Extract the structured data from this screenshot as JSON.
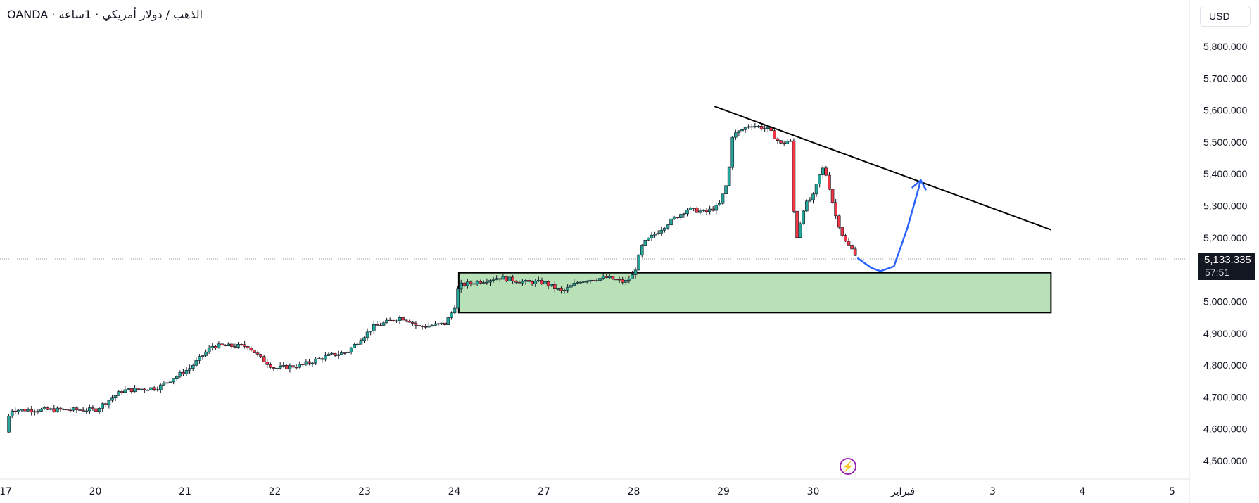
{
  "header": {
    "title": "OANDA · الذهب / دولار أمريكي · 1ساعة"
  },
  "currency_button": "USD",
  "last_price": {
    "price": "5,133.335",
    "countdown": "57:51"
  },
  "colors": {
    "up": "#089981",
    "up_fill": "#26a69a",
    "down": "#f23645",
    "zone_fill": "#b9e1b7",
    "zone_border": "#000000",
    "trendline": "#000000",
    "projection": "#2962ff",
    "grid_text": "#131722",
    "price_line": "#9598a1"
  },
  "icons": {
    "flash": "lightning-icon"
  },
  "chart_data": {
    "type": "candlestick",
    "interval": "1 hour",
    "y_axis": {
      "range": [
        4450,
        5920
      ],
      "ticks": [
        4500,
        4600,
        4700,
        4800,
        4900,
        5000,
        5100,
        5200,
        5300,
        5400,
        5500,
        5600,
        5700,
        5800
      ],
      "tick_labels": [
        "4,500.000",
        "4,600.000",
        "4,700.000",
        "4,800.000",
        "4,900.000",
        "5,000.000",
        "5,100.000",
        "5,200.000",
        "5,300.000",
        "5,400.000",
        "5,500.000",
        "5,600.000",
        "5,700.000",
        "5,800.000"
      ]
    },
    "x_axis": {
      "range": [
        0,
        13.2
      ],
      "ticks": [
        {
          "pos": 0,
          "label": "17"
        },
        {
          "pos": 1,
          "label": "20"
        },
        {
          "pos": 2,
          "label": "21"
        },
        {
          "pos": 3,
          "label": "22"
        },
        {
          "pos": 4,
          "label": "23"
        },
        {
          "pos": 5,
          "label": "24"
        },
        {
          "pos": 6,
          "label": "27"
        },
        {
          "pos": 7,
          "label": "28"
        },
        {
          "pos": 8,
          "label": "29"
        },
        {
          "pos": 9,
          "label": "30"
        },
        {
          "pos": 10,
          "label": "فبراير"
        },
        {
          "pos": 11,
          "label": "3"
        },
        {
          "pos": 12,
          "label": "4"
        },
        {
          "pos": 13,
          "label": "5"
        }
      ]
    },
    "price_path": [
      [
        0,
        4590
      ],
      [
        0.05,
        4660
      ],
      [
        0.4,
        4660
      ],
      [
        1.0,
        4660
      ],
      [
        1.3,
        4720
      ],
      [
        1.7,
        4730
      ],
      [
        2.05,
        4790
      ],
      [
        2.3,
        4860
      ],
      [
        2.7,
        4860
      ],
      [
        2.85,
        4820
      ],
      [
        3.0,
        4790
      ],
      [
        3.3,
        4800
      ],
      [
        3.6,
        4830
      ],
      [
        3.8,
        4840
      ],
      [
        4.1,
        4920
      ],
      [
        4.4,
        4950
      ],
      [
        4.5,
        4940
      ],
      [
        4.6,
        4920
      ],
      [
        4.9,
        4930
      ],
      [
        5.0,
        4980
      ],
      [
        5.05,
        5050
      ],
      [
        5.5,
        5075
      ],
      [
        5.8,
        5060
      ],
      [
        6.0,
        5060
      ],
      [
        6.2,
        5030
      ],
      [
        6.4,
        5065
      ],
      [
        6.7,
        5075
      ],
      [
        6.9,
        5060
      ],
      [
        7.0,
        5085
      ],
      [
        7.1,
        5180
      ],
      [
        7.4,
        5250
      ],
      [
        7.6,
        5290
      ],
      [
        7.8,
        5280
      ],
      [
        7.95,
        5300
      ],
      [
        8.05,
        5380
      ],
      [
        8.1,
        5520
      ],
      [
        8.3,
        5555
      ],
      [
        8.5,
        5540
      ],
      [
        8.65,
        5490
      ],
      [
        8.7,
        5505
      ],
      [
        8.75,
        5500
      ],
      [
        8.8,
        5180
      ],
      [
        8.9,
        5300
      ],
      [
        9.0,
        5330
      ],
      [
        9.1,
        5420
      ],
      [
        9.15,
        5395
      ],
      [
        9.25,
        5270
      ],
      [
        9.35,
        5190
      ],
      [
        9.5,
        5140
      ]
    ],
    "annotations": {
      "support_zone": {
        "x_start": 5.05,
        "x_end": 11.65,
        "y_low": 4965,
        "y_high": 5090
      },
      "trendline": {
        "start": [
          7.9,
          5612
        ],
        "end": [
          11.65,
          5225
        ]
      },
      "projection_path": [
        [
          9.5,
          5135
        ],
        [
          9.65,
          5105
        ],
        [
          9.75,
          5095
        ],
        [
          9.9,
          5110
        ],
        [
          10.05,
          5230
        ],
        [
          10.2,
          5380
        ]
      ],
      "last_price_line": 5133.335
    }
  }
}
